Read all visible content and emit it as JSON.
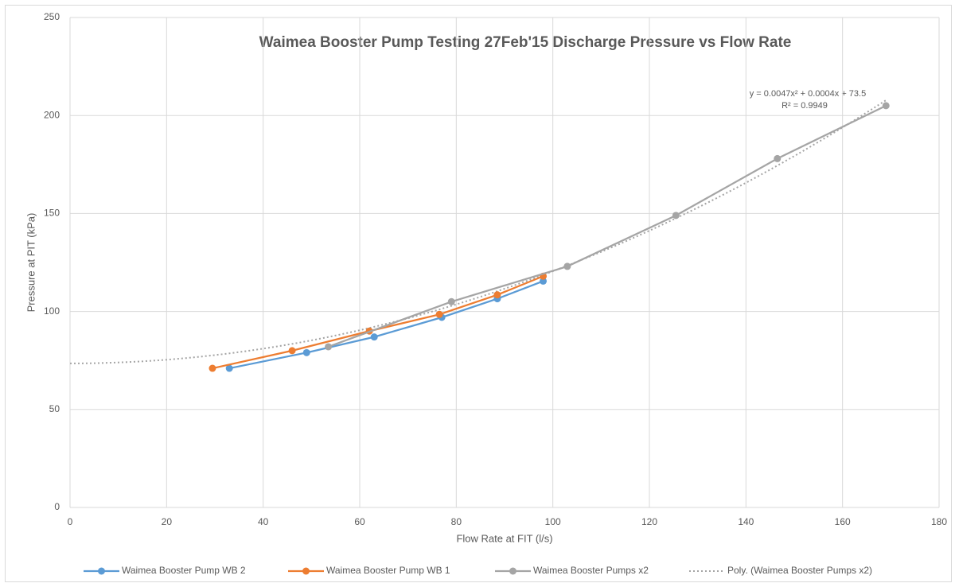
{
  "chart_data": {
    "type": "scatter",
    "title": "Waimea Booster Pump Testing 27Feb'15 Discharge Pressure vs Flow Rate",
    "x_label": "Flow Rate at FIT (l/s)",
    "y_label": "Pressure at PIT (kPa)",
    "xlim": [
      0,
      180
    ],
    "xticks": [
      0,
      20,
      40,
      60,
      80,
      100,
      120,
      140,
      160,
      180
    ],
    "ylim": [
      0,
      250
    ],
    "yticks": [
      0,
      50,
      100,
      150,
      200,
      250
    ],
    "grid": true,
    "legend": "bottom",
    "series": [
      {
        "name": "Waimea Booster Pump WB 2",
        "color": "#5b9bd5",
        "x": [
          33,
          49,
          63,
          77,
          88.5,
          98
        ],
        "values": [
          71,
          79,
          87,
          97,
          106.5,
          115.5
        ]
      },
      {
        "name": "Waimea Booster Pump WB 1",
        "color": "#ed7d31",
        "x": [
          29.5,
          46,
          62,
          76.5,
          88.5,
          98
        ],
        "values": [
          71,
          80,
          90,
          98.5,
          108.5,
          118
        ]
      },
      {
        "name": "Waimea Booster Pumps x2",
        "color": "#a5a5a5",
        "x": [
          53.5,
          79,
          103,
          125.5,
          146.5,
          169
        ],
        "values": [
          82,
          105,
          123,
          149,
          178,
          205
        ]
      }
    ],
    "trendline": {
      "name": "Poly. (Waimea Booster Pumps x2)",
      "color": "#a5a5a5",
      "coefficients": [
        0.0047,
        0.0004,
        73.5
      ],
      "xlim": [
        0,
        169
      ],
      "equation_label": "y = 0.0047x² + 0.0004x + 73.5",
      "r2_label": "R² = 0.9949"
    }
  }
}
